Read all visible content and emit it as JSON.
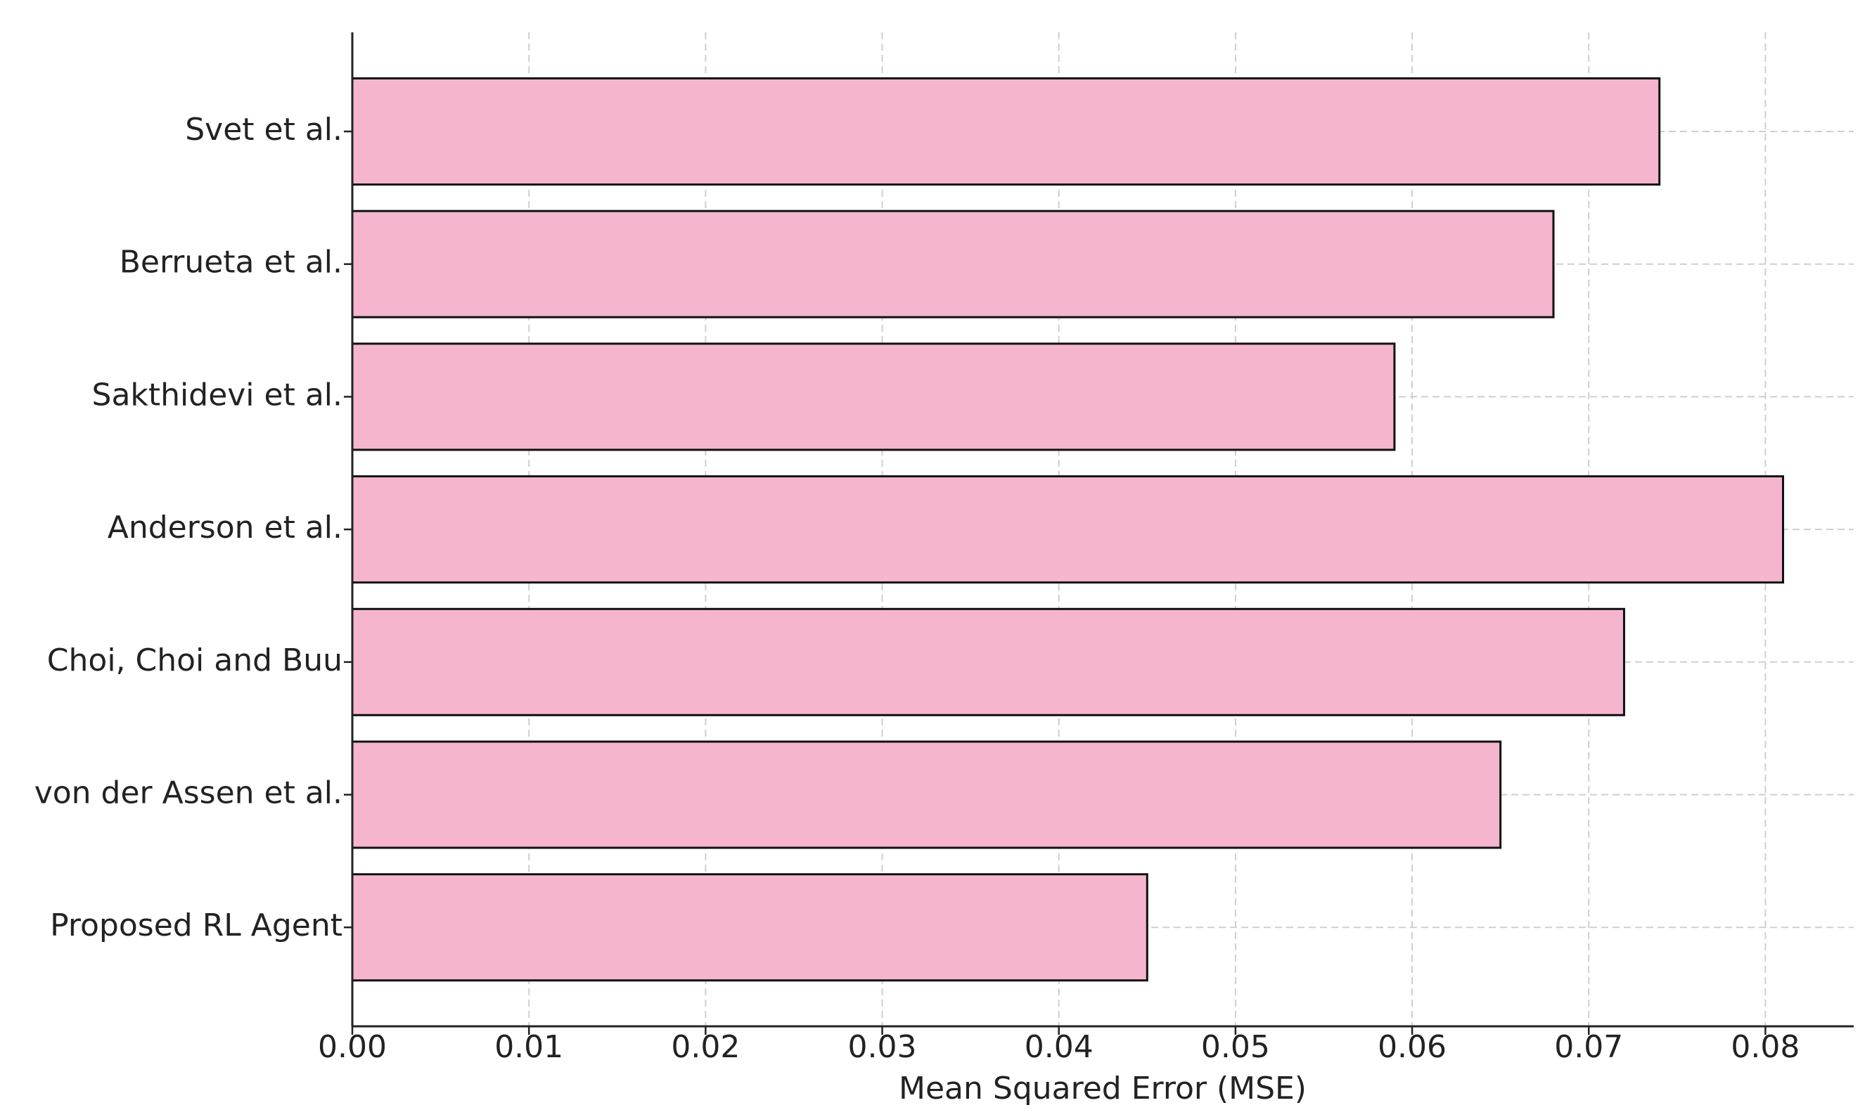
{
  "chart_data": {
    "type": "bar",
    "orientation": "horizontal",
    "xlabel": "Mean Squared Error (MSE)",
    "categories": [
      "Svet et al.",
      "Berrueta et al.",
      "Sakthidevi et al.",
      "Anderson et al.",
      "Choi, Choi and Buu",
      "von der Assen et al.",
      "Proposed RL Agent"
    ],
    "values": [
      0.074,
      0.068,
      0.059,
      0.081,
      0.072,
      0.065,
      0.045
    ],
    "color": "#f5b5cf",
    "edgecolor": "#111111",
    "xlim": [
      0,
      0.085
    ],
    "xticks": [
      {
        "value": 0,
        "label": "0.00"
      },
      0.01,
      0.02,
      0.03,
      0.04,
      0.05,
      0.06,
      0.07,
      0.08
    ],
    "grid": true
  }
}
